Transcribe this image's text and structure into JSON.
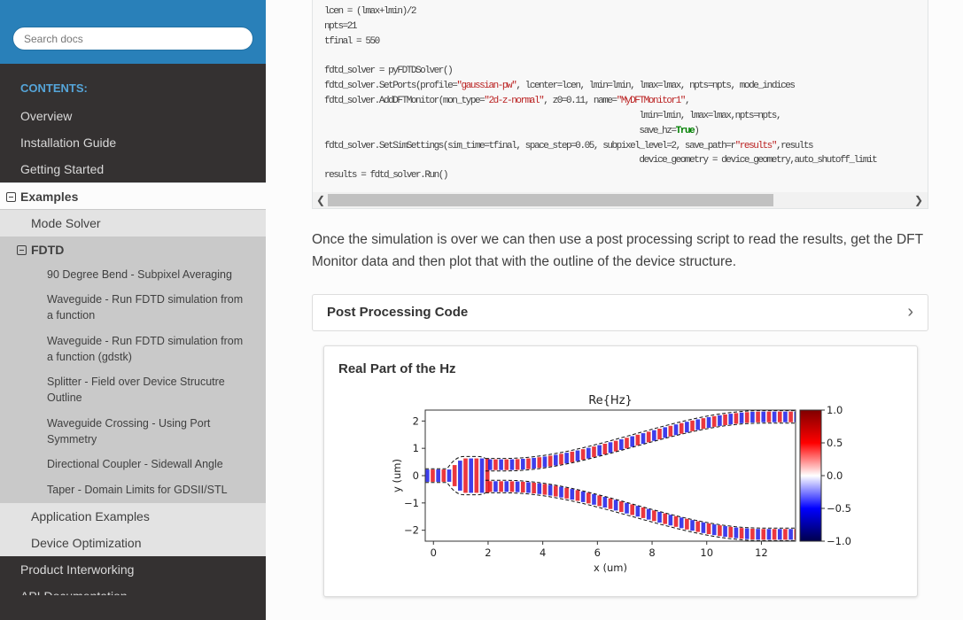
{
  "sidebar": {
    "search_placeholder": "Search docs",
    "caption": "CONTENTS:",
    "top_items": [
      "Overview",
      "Installation Guide",
      "Getting Started"
    ],
    "current": "Examples",
    "mode_solver": "Mode Solver",
    "fdtd": "FDTD",
    "fdtd_items": [
      "90 Degree Bend - Subpixel Averaging",
      "Waveguide - Run FDTD simulation from a function",
      "Waveguide - Run FDTD simulation from a function (gdstk)",
      "Splitter - Field over Device Strucutre Outline",
      "Waveguide Crossing - Using Port Symmetry",
      "Directional Coupler - Sidewall Angle",
      "Taper - Domain Limits for GDSII/STL"
    ],
    "after_items": [
      "Application Examples",
      "Device Optimization"
    ],
    "bottom_items": [
      "Product Interworking",
      "API Documentation"
    ]
  },
  "code": {
    "lines": [
      [
        [
          "lcen = (lmax+lmin)/2",
          ""
        ]
      ],
      [
        [
          "npts=21",
          ""
        ]
      ],
      [
        [
          "tfinal = 550",
          ""
        ]
      ],
      [
        [
          "",
          ""
        ]
      ],
      [
        [
          "fdtd_solver = pyFDTDSolver()",
          ""
        ]
      ],
      [
        [
          "fdtd_solver.SetPorts(profile=",
          ""
        ],
        [
          "\"gaussian-pw\"",
          "s"
        ],
        [
          ", lcenter=lcen, lmin=lmin, lmax=lmax, npts=npts, mode_indices",
          ""
        ]
      ],
      [
        [
          "fdtd_solver.AddDFTMonitor(mon_type=",
          ""
        ],
        [
          "\"2d-z-normal\"",
          "s"
        ],
        [
          ", z0=0.11, name=",
          ""
        ],
        [
          "\"MyDFTMonitor1\"",
          "s"
        ],
        [
          ",",
          ""
        ]
      ],
      [
        [
          "                                                                     lmin=lmin, lmax=lmax,npts=npts,",
          ""
        ]
      ],
      [
        [
          "                                                                     save_hz=",
          ""
        ],
        [
          "True",
          "k"
        ],
        [
          ")",
          ""
        ]
      ],
      [
        [
          "fdtd_solver.SetSimSettings(sim_time=tfinal, space_step=0.05, subpixel_level=2, save_path=r",
          ""
        ],
        [
          "\"results\"",
          "s"
        ],
        [
          ",results",
          ""
        ]
      ],
      [
        [
          "                                                                     device_geometry = device_geometry,auto_shutoff_limit",
          ""
        ]
      ],
      [
        [
          "results = fdtd_solver.Run()",
          ""
        ]
      ]
    ]
  },
  "paragraph": "Once the simulation is over we can then use a post processing script to read the results, get the DFT Monitor data and then plot that with the outline of the device structure.",
  "collapsible": {
    "title": "Post Processing Code",
    "icon": "chevron-right-icon"
  },
  "figure": {
    "heading": "Real Part of the Hz",
    "plot": {
      "type": "heatmap",
      "title": "Re{Hz}",
      "xlabel": "x (um)",
      "ylabel": "y (um)",
      "xlim": [
        -0.3,
        13.25
      ],
      "ylim": [
        -2.4,
        2.4
      ],
      "xticks": [
        "0",
        "2",
        "4",
        "6",
        "8",
        "10",
        "12"
      ],
      "yticks": [
        "2",
        "1",
        "0",
        "−1",
        "−2"
      ],
      "colorbar_ticks": [
        "1.0",
        "0.5",
        "0.0",
        "−0.5",
        "−1.0"
      ],
      "colormap": "seismic",
      "colors": {
        "positive": "#e8141c",
        "negative": "#1c1ce8",
        "zero": "#ffffff"
      }
    }
  }
}
